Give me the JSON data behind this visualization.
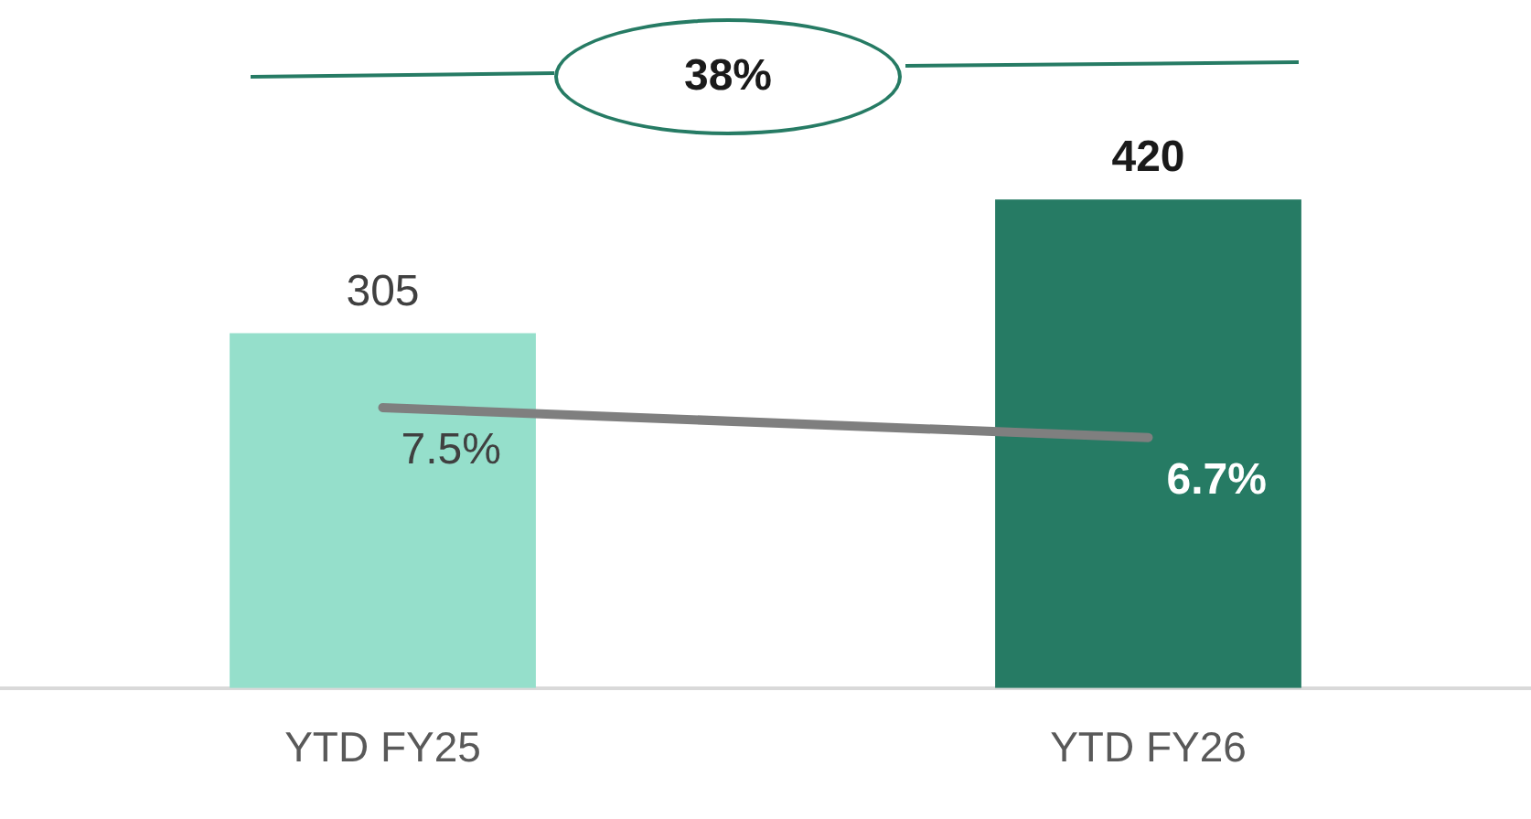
{
  "chart_data": {
    "type": "bar",
    "categories": [
      "YTD FY25",
      "YTD FY26"
    ],
    "series": [
      {
        "colors": [
          "#95dfcb",
          "#267b64"
        ],
        "values": [
          305,
          420
        ],
        "value_labels": [
          "305",
          "420"
        ]
      },
      {
        "type": "line",
        "axis": "y2",
        "color": "#7f7f7f",
        "values": [
          7.5,
          6.7
        ],
        "value_labels": [
          "7.5%",
          "6.7%"
        ],
        "marker": "none"
      }
    ],
    "annotations": [
      "38%"
    ],
    "grid": false,
    "legend": false
  }
}
